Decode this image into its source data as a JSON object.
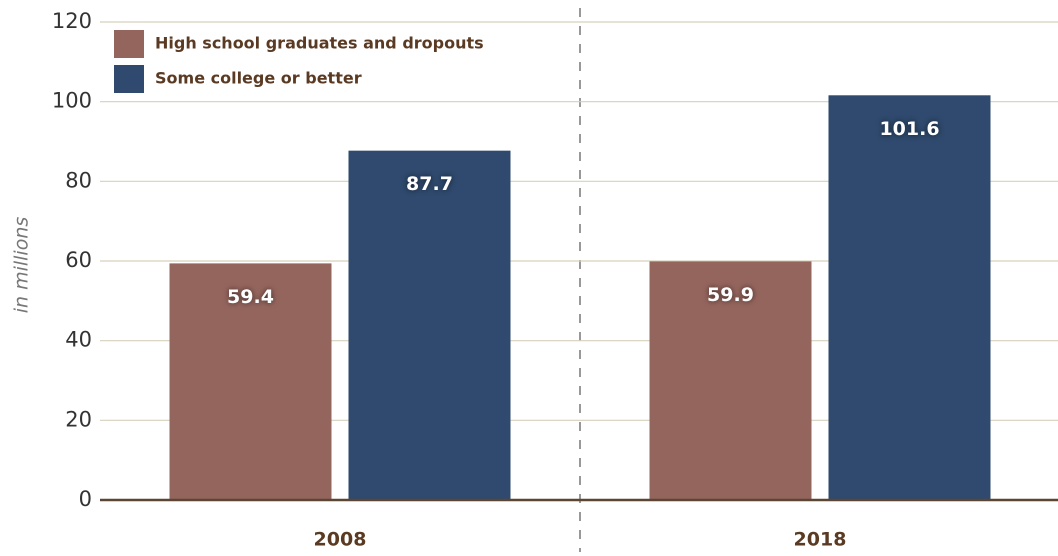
{
  "chart_data": {
    "type": "bar",
    "y_label": "in millions",
    "categories": [
      "2008",
      "2018"
    ],
    "series": [
      {
        "name": "High school graduates and dropouts",
        "color": "#94655d",
        "values": [
          59.4,
          59.9
        ]
      },
      {
        "name": "Some college or better",
        "color": "#2f4a6e",
        "values": [
          87.7,
          101.6
        ]
      }
    ],
    "ylim": [
      0,
      120
    ],
    "yticks": [
      0,
      20,
      40,
      60,
      80,
      100,
      120
    ],
    "grid": true,
    "legend": "upper left"
  }
}
